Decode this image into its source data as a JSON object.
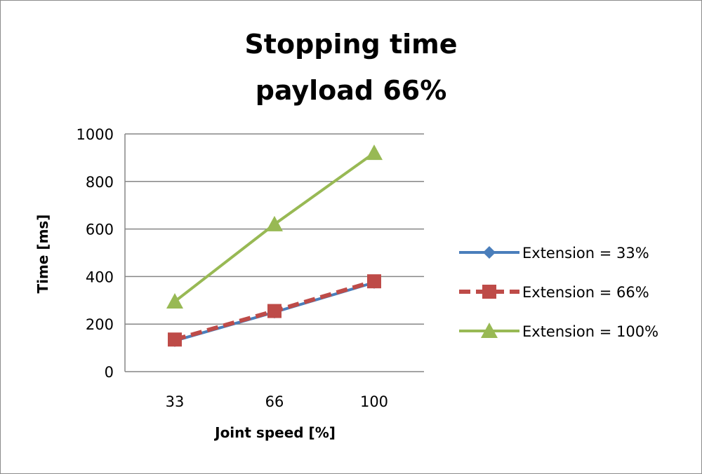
{
  "chart_data": {
    "type": "line",
    "title": "Stopping time",
    "subtitle": "payload 66%",
    "xlabel": "Joint speed [%]",
    "ylabel": "Time [ms]",
    "categories": [
      "33",
      "66",
      "100"
    ],
    "ylim": [
      0,
      1000
    ],
    "yticks": [
      "0",
      "200",
      "400",
      "600",
      "800",
      "1000"
    ],
    "grid": true,
    "legend_position": "right",
    "series": [
      {
        "name": "Extension = 33%",
        "values": [
          130,
          250,
          375
        ],
        "color": "#4a7ebb",
        "marker": "diamond",
        "dash": false
      },
      {
        "name": "Extension = 66%",
        "values": [
          135,
          255,
          380
        ],
        "color": "#be4b48",
        "marker": "square",
        "dash": true
      },
      {
        "name": "Extension = 100%",
        "values": [
          295,
          620,
          920
        ],
        "color": "#98b954",
        "marker": "triangle",
        "dash": false
      }
    ]
  }
}
